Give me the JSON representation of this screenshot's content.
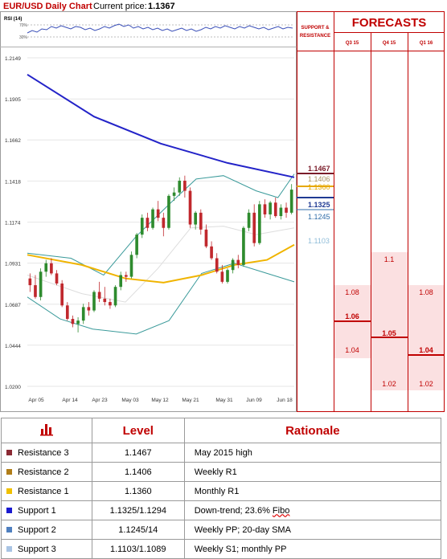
{
  "header": {
    "title": "EUR/USD Daily Chart",
    "price_label": "Current price:",
    "price_value": "1.1367"
  },
  "rsi": {
    "label": "RSI (14)",
    "upper": "70%",
    "lower": "30%"
  },
  "forecasts_panel": {
    "sr_label_line1": "SUPPORT &",
    "sr_label_line2": "RESISTANCE",
    "title": "FORECASTS",
    "columns": [
      "Q3 15",
      "Q4 15",
      "Q1 16"
    ],
    "q3": {
      "high": "1.08",
      "mid": "1.06",
      "low": "1.04"
    },
    "q4": {
      "high": "1.1",
      "mid": "1.05",
      "low": "1.02"
    },
    "q1": {
      "high": "1.08",
      "mid": "1.04",
      "low": "1.02"
    }
  },
  "sr_levels": [
    {
      "label": "1.1467",
      "color": "#7b1c2a"
    },
    {
      "label": "1.1406",
      "color": "#a89060"
    },
    {
      "label": "1.1360",
      "color": "#e6a800"
    },
    {
      "label": "1.1325",
      "color": "#1f3a93"
    },
    {
      "label": "1.1245",
      "color": "#2f6da8"
    },
    {
      "label": "1.1103",
      "color": "#8fbcd8"
    }
  ],
  "chart_data": {
    "type": "candlestick",
    "title": "EUR/USD Daily Chart",
    "y_ticks": [
      "1.2149",
      "1.1905",
      "1.1662",
      "1.1418",
      "1.1174",
      "1.0931",
      "1.0687",
      "1.0444",
      "1.0200"
    ],
    "ylim": [
      1.02,
      1.2149
    ],
    "x_ticks": [
      "Apr 05",
      "Apr 14",
      "Apr 23",
      "May 03",
      "May 12",
      "May 21",
      "May 31",
      "Jun 09",
      "Jun 18"
    ],
    "colors": {
      "up": "#2e8b2e",
      "down": "#c0282d",
      "sma200": "#2323c8",
      "ma": "#f0b400",
      "bands": "#3a9a9a"
    },
    "candles": [
      [
        1.084,
        1.087,
        1.076,
        1.08
      ],
      [
        1.08,
        1.086,
        1.072,
        1.073
      ],
      [
        1.073,
        1.09,
        1.071,
        1.088
      ],
      [
        1.088,
        1.095,
        1.085,
        1.093
      ],
      [
        1.093,
        1.096,
        1.086,
        1.087
      ],
      [
        1.087,
        1.089,
        1.08,
        1.081
      ],
      [
        1.081,
        1.083,
        1.067,
        1.068
      ],
      [
        1.068,
        1.07,
        1.059,
        1.06
      ],
      [
        1.06,
        1.062,
        1.055,
        1.057
      ],
      [
        1.057,
        1.061,
        1.052,
        1.059
      ],
      [
        1.059,
        1.069,
        1.057,
        1.067
      ],
      [
        1.067,
        1.07,
        1.062,
        1.065
      ],
      [
        1.065,
        1.077,
        1.064,
        1.076
      ],
      [
        1.076,
        1.082,
        1.07,
        1.072
      ],
      [
        1.072,
        1.079,
        1.068,
        1.07
      ],
      [
        1.07,
        1.072,
        1.066,
        1.068
      ],
      [
        1.068,
        1.08,
        1.067,
        1.079
      ],
      [
        1.079,
        1.088,
        1.077,
        1.086
      ],
      [
        1.086,
        1.088,
        1.082,
        1.085
      ],
      [
        1.085,
        1.1,
        1.084,
        1.098
      ],
      [
        1.098,
        1.111,
        1.096,
        1.11
      ],
      [
        1.11,
        1.122,
        1.108,
        1.12
      ],
      [
        1.12,
        1.123,
        1.112,
        1.114
      ],
      [
        1.114,
        1.126,
        1.113,
        1.125
      ],
      [
        1.125,
        1.13,
        1.118,
        1.12
      ],
      [
        1.12,
        1.123,
        1.109,
        1.114
      ],
      [
        1.114,
        1.134,
        1.113,
        1.133
      ],
      [
        1.133,
        1.138,
        1.13,
        1.135
      ],
      [
        1.135,
        1.144,
        1.133,
        1.142
      ],
      [
        1.142,
        1.145,
        1.132,
        1.136
      ],
      [
        1.136,
        1.138,
        1.114,
        1.116
      ],
      [
        1.116,
        1.124,
        1.113,
        1.123
      ],
      [
        1.123,
        1.125,
        1.11,
        1.113
      ],
      [
        1.113,
        1.116,
        1.102,
        1.103
      ],
      [
        1.103,
        1.106,
        1.095,
        1.096
      ],
      [
        1.096,
        1.099,
        1.087,
        1.088
      ],
      [
        1.088,
        1.092,
        1.081,
        1.082
      ],
      [
        1.082,
        1.09,
        1.081,
        1.089
      ],
      [
        1.089,
        1.096,
        1.087,
        1.095
      ],
      [
        1.095,
        1.098,
        1.09,
        1.092
      ],
      [
        1.092,
        1.115,
        1.091,
        1.114
      ],
      [
        1.114,
        1.125,
        1.112,
        1.123
      ],
      [
        1.123,
        1.128,
        1.103,
        1.105
      ],
      [
        1.105,
        1.13,
        1.104,
        1.128
      ],
      [
        1.128,
        1.131,
        1.12,
        1.122
      ],
      [
        1.122,
        1.13,
        1.119,
        1.129
      ],
      [
        1.129,
        1.132,
        1.12,
        1.121
      ],
      [
        1.121,
        1.128,
        1.119,
        1.126
      ],
      [
        1.126,
        1.129,
        1.12,
        1.123
      ],
      [
        1.123,
        1.14,
        1.122,
        1.1367
      ]
    ],
    "sma200": [
      [
        0,
        1.205
      ],
      [
        25,
        1.18
      ],
      [
        50,
        1.164
      ],
      [
        75,
        1.1525
      ],
      [
        100,
        1.144
      ]
    ],
    "ma_yellow": [
      [
        0,
        1.098
      ],
      [
        10,
        1.092
      ],
      [
        18,
        1.084
      ],
      [
        25,
        1.0815
      ],
      [
        32,
        1.086
      ],
      [
        38,
        1.092
      ],
      [
        44,
        1.095
      ],
      [
        49,
        1.104
      ]
    ],
    "bb_upper": [
      [
        0,
        1.099
      ],
      [
        8,
        1.096
      ],
      [
        14,
        1.086
      ],
      [
        20,
        1.109
      ],
      [
        27,
        1.131
      ],
      [
        31,
        1.143
      ],
      [
        36,
        1.145
      ],
      [
        42,
        1.136
      ],
      [
        46,
        1.132
      ],
      [
        49,
        1.146
      ]
    ],
    "bb_lower": [
      [
        0,
        1.073
      ],
      [
        6,
        1.06
      ],
      [
        12,
        1.054
      ],
      [
        20,
        1.051
      ],
      [
        26,
        1.059
      ],
      [
        32,
        1.087
      ],
      [
        38,
        1.093
      ],
      [
        44,
        1.087
      ],
      [
        49,
        1.082
      ]
    ],
    "bb_mid": [
      [
        0,
        1.086
      ],
      [
        10,
        1.075
      ],
      [
        18,
        1.07
      ],
      [
        24,
        1.09
      ],
      [
        30,
        1.114
      ],
      [
        36,
        1.115
      ],
      [
        42,
        1.11
      ],
      [
        49,
        1.114
      ]
    ]
  },
  "table": {
    "headers": [
      "Level",
      "Rationale"
    ],
    "rows": [
      {
        "name": "Resistance 3",
        "level": "1.1467",
        "rationale": "May 2015 high",
        "color": "#8b2a34"
      },
      {
        "name": "Resistance 2",
        "level": "1.1406",
        "rationale": "Weekly R1",
        "color": "#b07d18"
      },
      {
        "name": "Resistance 1",
        "level": "1.1360",
        "rationale": "Monthly R1",
        "color": "#f0c000"
      },
      {
        "name": "Support 1",
        "level": "1.1325/1.1294",
        "rationale": "Down-trend; 23.6% Fibo",
        "color": "#1a1ad0"
      },
      {
        "name": "Support 2",
        "level": "1.1245/14",
        "rationale": "Weekly PP; 20-day SMA",
        "color": "#4f7fbf"
      },
      {
        "name": "Support 3",
        "level": "1.1103/1.1089",
        "rationale": "Weekly S1; monthly PP",
        "color": "#a9c4e4"
      }
    ]
  }
}
